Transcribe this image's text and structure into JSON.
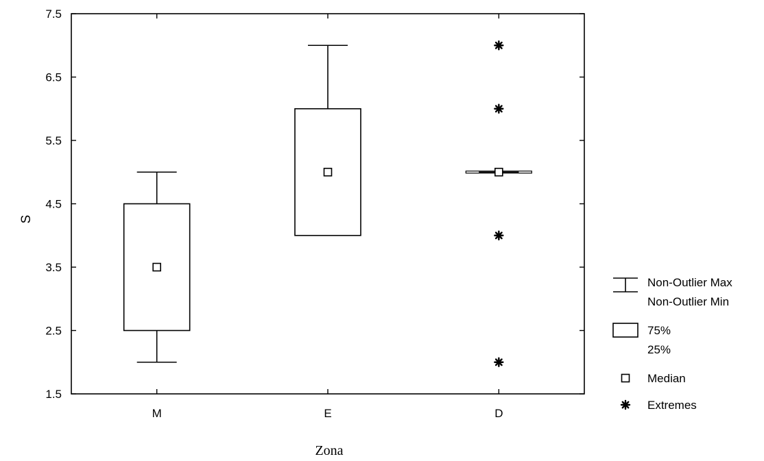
{
  "chart_data": {
    "type": "box",
    "title": "",
    "xlabel": "Zona",
    "ylabel": "S",
    "ylim": [
      1.5,
      7.5
    ],
    "yticks": [
      1.5,
      2.5,
      3.5,
      4.5,
      5.5,
      6.5,
      7.5
    ],
    "ytick_labels": [
      "1.5",
      "2.5",
      "3.5",
      "4.5",
      "5.5",
      "6.5",
      "7.5"
    ],
    "categories": [
      "M",
      "E",
      "D"
    ],
    "boxes": [
      {
        "category": "M",
        "whisker_min": 2.0,
        "q1": 2.5,
        "median": 3.5,
        "q3": 4.5,
        "whisker_max": 5.0,
        "extremes": []
      },
      {
        "category": "E",
        "whisker_min": 4.0,
        "q1": 4.0,
        "median": 5.0,
        "q3": 6.0,
        "whisker_max": 7.0,
        "extremes": []
      },
      {
        "category": "D",
        "whisker_min": 5.0,
        "q1": 5.0,
        "median": 5.0,
        "q3": 5.0,
        "whisker_max": 5.0,
        "extremes": [
          7.0,
          6.0,
          4.0,
          2.0
        ]
      }
    ],
    "legend": {
      "position": "right",
      "items": [
        {
          "symbol": "whisker",
          "labels": [
            "Non-Outlier Max",
            "Non-Outlier Min"
          ]
        },
        {
          "symbol": "box",
          "labels": [
            "75%",
            "25%"
          ]
        },
        {
          "symbol": "median-square",
          "labels": [
            "Median"
          ]
        },
        {
          "symbol": "extreme-star",
          "labels": [
            "Extremes"
          ]
        }
      ]
    },
    "colors": {
      "line": "#000000",
      "background": "#ffffff"
    }
  }
}
